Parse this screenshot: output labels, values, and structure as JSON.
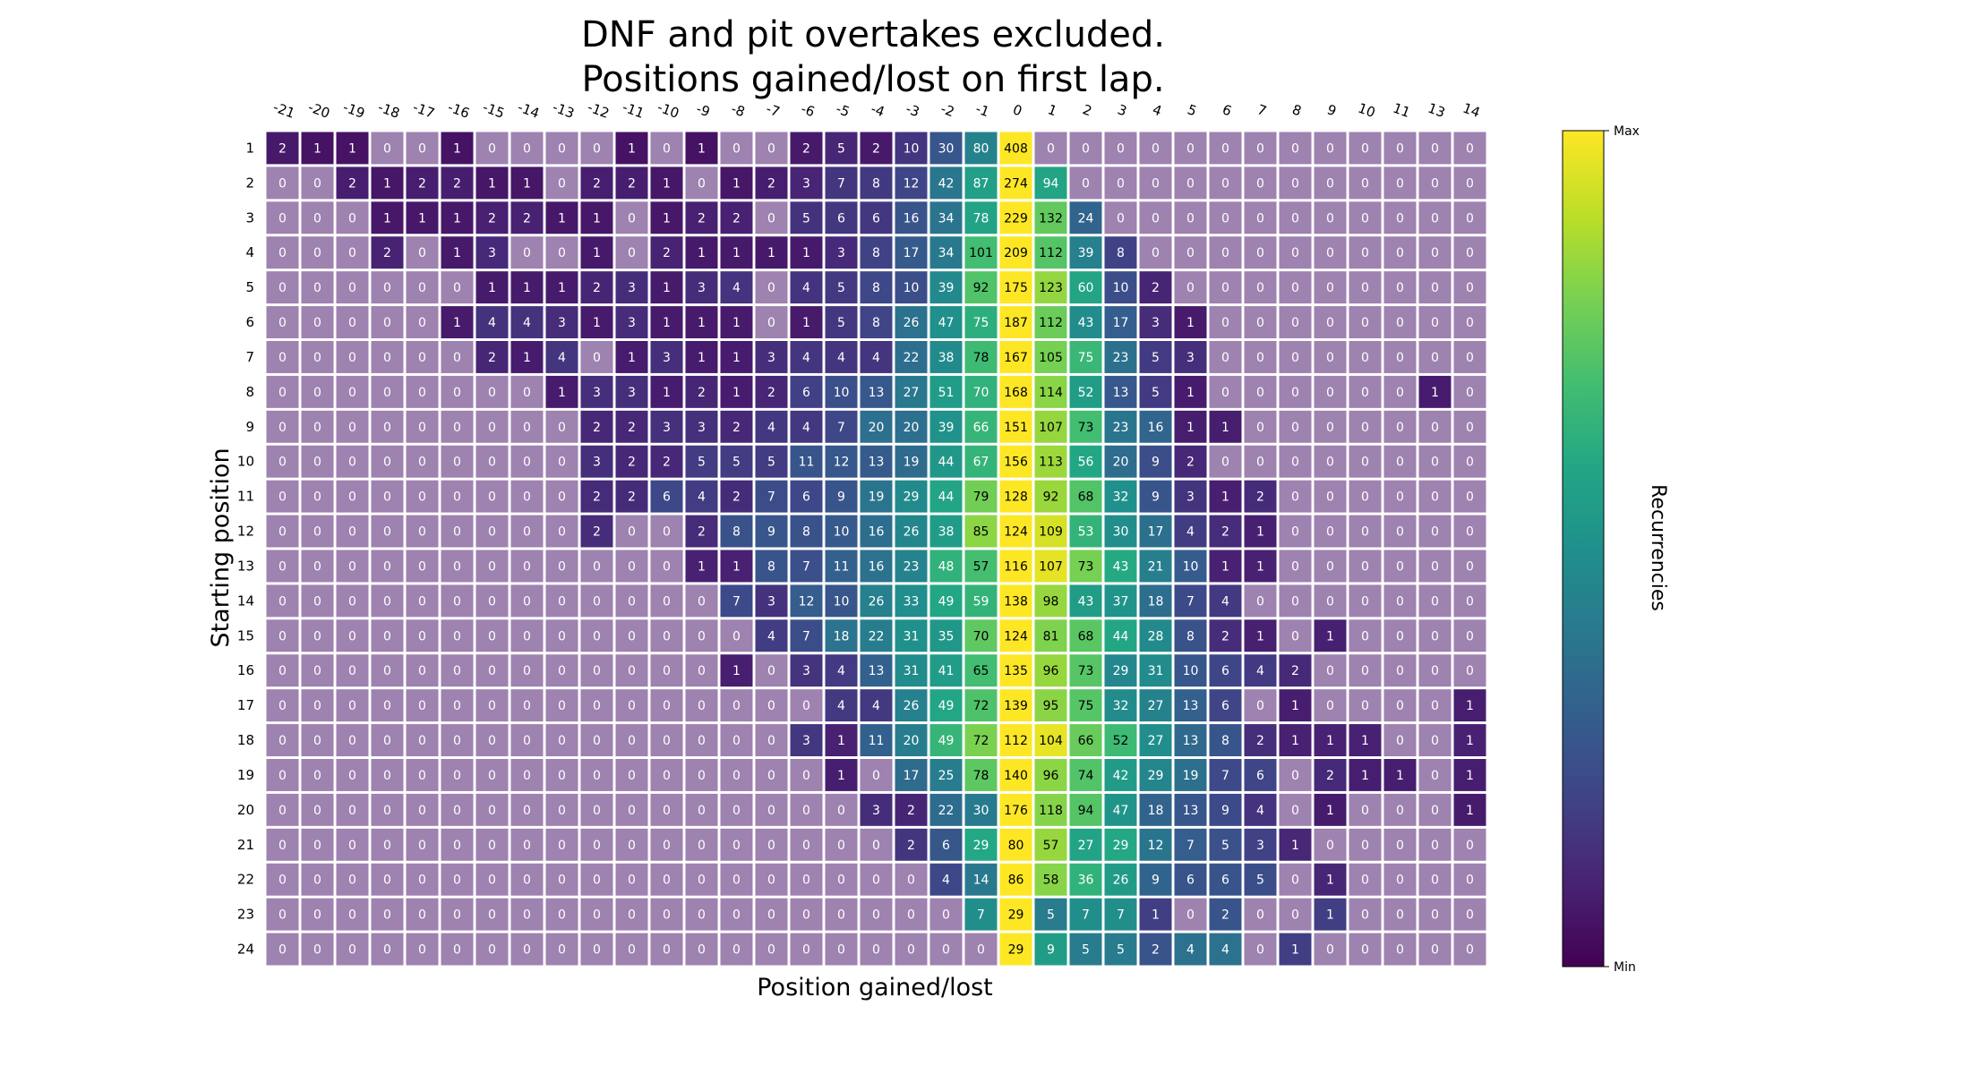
{
  "chart_data": {
    "type": "heatmap",
    "title_lines": [
      "DNF and pit overtakes excluded.",
      "Positions gained/lost on first lap."
    ],
    "xlabel": "Position gained/lost",
    "ylabel": "Starting position",
    "x": [
      -21,
      -20,
      -19,
      -18,
      -17,
      -16,
      -15,
      -14,
      -13,
      -12,
      -11,
      -10,
      -9,
      -8,
      -7,
      -6,
      -5,
      -4,
      -3,
      -2,
      -1,
      0,
      1,
      2,
      3,
      4,
      5,
      6,
      7,
      8,
      9,
      10,
      11,
      13,
      14
    ],
    "y": [
      1,
      2,
      3,
      4,
      5,
      6,
      7,
      8,
      9,
      10,
      11,
      12,
      13,
      14,
      15,
      16,
      17,
      18,
      19,
      20,
      21,
      22,
      23,
      24
    ],
    "values": [
      [
        2,
        1,
        1,
        0,
        0,
        1,
        0,
        0,
        0,
        0,
        1,
        0,
        1,
        0,
        0,
        2,
        5,
        2,
        10,
        30,
        80,
        408,
        0,
        0,
        0,
        0,
        0,
        0,
        0,
        0,
        0,
        0,
        0,
        0,
        0
      ],
      [
        0,
        0,
        2,
        1,
        2,
        2,
        1,
        1,
        0,
        2,
        2,
        1,
        0,
        1,
        2,
        3,
        7,
        8,
        12,
        42,
        87,
        274,
        94,
        0,
        0,
        0,
        0,
        0,
        0,
        0,
        0,
        0,
        0,
        0,
        0
      ],
      [
        0,
        0,
        0,
        1,
        1,
        1,
        2,
        2,
        1,
        1,
        0,
        1,
        2,
        2,
        0,
        5,
        6,
        6,
        16,
        34,
        78,
        229,
        132,
        24,
        0,
        0,
        0,
        0,
        0,
        0,
        0,
        0,
        0,
        0,
        0
      ],
      [
        0,
        0,
        0,
        2,
        0,
        1,
        3,
        0,
        0,
        1,
        0,
        2,
        1,
        1,
        1,
        1,
        3,
        8,
        17,
        34,
        101,
        209,
        112,
        39,
        8,
        0,
        0,
        0,
        0,
        0,
        0,
        0,
        0,
        0,
        0
      ],
      [
        0,
        0,
        0,
        0,
        0,
        0,
        1,
        1,
        1,
        2,
        3,
        1,
        3,
        4,
        0,
        4,
        5,
        8,
        10,
        39,
        92,
        175,
        123,
        60,
        10,
        2,
        0,
        0,
        0,
        0,
        0,
        0,
        0,
        0,
        0
      ],
      [
        0,
        0,
        0,
        0,
        0,
        1,
        4,
        4,
        3,
        1,
        3,
        1,
        1,
        1,
        0,
        1,
        5,
        8,
        26,
        47,
        75,
        187,
        112,
        43,
        17,
        3,
        1,
        0,
        0,
        0,
        0,
        0,
        0,
        0,
        0
      ],
      [
        0,
        0,
        0,
        0,
        0,
        0,
        2,
        1,
        4,
        0,
        1,
        3,
        1,
        1,
        3,
        4,
        4,
        4,
        22,
        38,
        78,
        167,
        105,
        75,
        23,
        5,
        3,
        0,
        0,
        0,
        0,
        0,
        0,
        0,
        0
      ],
      [
        0,
        0,
        0,
        0,
        0,
        0,
        0,
        0,
        1,
        3,
        3,
        1,
        2,
        1,
        2,
        6,
        10,
        13,
        27,
        51,
        70,
        168,
        114,
        52,
        13,
        5,
        1,
        0,
        0,
        0,
        0,
        0,
        0,
        1,
        0
      ],
      [
        0,
        0,
        0,
        0,
        0,
        0,
        0,
        0,
        0,
        2,
        2,
        3,
        3,
        2,
        4,
        4,
        7,
        20,
        20,
        39,
        66,
        151,
        107,
        73,
        23,
        16,
        1,
        1,
        0,
        0,
        0,
        0,
        0,
        0,
        0
      ],
      [
        0,
        0,
        0,
        0,
        0,
        0,
        0,
        0,
        0,
        3,
        2,
        2,
        5,
        5,
        5,
        11,
        12,
        13,
        19,
        44,
        67,
        156,
        113,
        56,
        20,
        9,
        2,
        0,
        0,
        0,
        0,
        0,
        0,
        0,
        0
      ],
      [
        0,
        0,
        0,
        0,
        0,
        0,
        0,
        0,
        0,
        2,
        2,
        6,
        4,
        2,
        7,
        6,
        9,
        19,
        29,
        44,
        79,
        128,
        92,
        68,
        32,
        9,
        3,
        1,
        2,
        0,
        0,
        0,
        0,
        0,
        0
      ],
      [
        0,
        0,
        0,
        0,
        0,
        0,
        0,
        0,
        0,
        2,
        0,
        0,
        2,
        8,
        9,
        8,
        10,
        16,
        26,
        38,
        85,
        124,
        109,
        53,
        30,
        17,
        4,
        2,
        1,
        0,
        0,
        0,
        0,
        0,
        0
      ],
      [
        0,
        0,
        0,
        0,
        0,
        0,
        0,
        0,
        0,
        0,
        0,
        0,
        1,
        1,
        8,
        7,
        11,
        16,
        23,
        48,
        57,
        116,
        107,
        73,
        43,
        21,
        10,
        1,
        1,
        0,
        0,
        0,
        0,
        0,
        0
      ],
      [
        0,
        0,
        0,
        0,
        0,
        0,
        0,
        0,
        0,
        0,
        0,
        0,
        0,
        7,
        3,
        12,
        10,
        26,
        33,
        49,
        59,
        138,
        98,
        43,
        37,
        18,
        7,
        4,
        0,
        0,
        0,
        0,
        0,
        0,
        0
      ],
      [
        0,
        0,
        0,
        0,
        0,
        0,
        0,
        0,
        0,
        0,
        0,
        0,
        0,
        0,
        4,
        7,
        18,
        22,
        31,
        35,
        70,
        124,
        81,
        68,
        44,
        28,
        8,
        2,
        1,
        0,
        1,
        0,
        0,
        0,
        0
      ],
      [
        0,
        0,
        0,
        0,
        0,
        0,
        0,
        0,
        0,
        0,
        0,
        0,
        0,
        1,
        0,
        3,
        4,
        13,
        31,
        41,
        65,
        135,
        96,
        73,
        29,
        31,
        10,
        6,
        4,
        2,
        0,
        0,
        0,
        0,
        0
      ],
      [
        0,
        0,
        0,
        0,
        0,
        0,
        0,
        0,
        0,
        0,
        0,
        0,
        0,
        0,
        0,
        0,
        4,
        4,
        26,
        49,
        72,
        139,
        95,
        75,
        32,
        27,
        13,
        6,
        0,
        1,
        0,
        0,
        0,
        0,
        1
      ],
      [
        0,
        0,
        0,
        0,
        0,
        0,
        0,
        0,
        0,
        0,
        0,
        0,
        0,
        0,
        0,
        3,
        1,
        11,
        20,
        49,
        72,
        112,
        104,
        66,
        52,
        27,
        13,
        8,
        2,
        1,
        1,
        1,
        0,
        0,
        1
      ],
      [
        0,
        0,
        0,
        0,
        0,
        0,
        0,
        0,
        0,
        0,
        0,
        0,
        0,
        0,
        0,
        0,
        1,
        0,
        17,
        25,
        78,
        140,
        96,
        74,
        42,
        29,
        19,
        7,
        6,
        0,
        2,
        1,
        1,
        0,
        1
      ],
      [
        0,
        0,
        0,
        0,
        0,
        0,
        0,
        0,
        0,
        0,
        0,
        0,
        0,
        0,
        0,
        0,
        0,
        3,
        2,
        22,
        30,
        176,
        118,
        94,
        47,
        18,
        13,
        9,
        4,
        0,
        1,
        0,
        0,
        0,
        1
      ],
      [
        0,
        0,
        0,
        0,
        0,
        0,
        0,
        0,
        0,
        0,
        0,
        0,
        0,
        0,
        0,
        0,
        0,
        0,
        2,
        6,
        29,
        80,
        57,
        27,
        29,
        12,
        7,
        5,
        3,
        1,
        0,
        0,
        0,
        0,
        0
      ],
      [
        0,
        0,
        0,
        0,
        0,
        0,
        0,
        0,
        0,
        0,
        0,
        0,
        0,
        0,
        0,
        0,
        0,
        0,
        0,
        4,
        14,
        86,
        58,
        36,
        26,
        9,
        6,
        6,
        5,
        0,
        1,
        0,
        0,
        0,
        0
      ],
      [
        0,
        0,
        0,
        0,
        0,
        0,
        0,
        0,
        0,
        0,
        0,
        0,
        0,
        0,
        0,
        0,
        0,
        0,
        0,
        0,
        7,
        29,
        5,
        7,
        7,
        1,
        0,
        2,
        0,
        0,
        1,
        0,
        0,
        0,
        0
      ],
      [
        0,
        0,
        0,
        0,
        0,
        0,
        0,
        0,
        0,
        0,
        0,
        0,
        0,
        0,
        0,
        0,
        0,
        0,
        0,
        0,
        0,
        29,
        9,
        5,
        5,
        2,
        4,
        4,
        0,
        1,
        0,
        0,
        0,
        0,
        0
      ]
    ],
    "colorscale": "viridis",
    "colorbar": {
      "label": "Recurrencies",
      "max_label": "Max",
      "min_label": "Min"
    },
    "zero_cell_color": "#9e82b0",
    "grid": false,
    "legend": "none"
  }
}
